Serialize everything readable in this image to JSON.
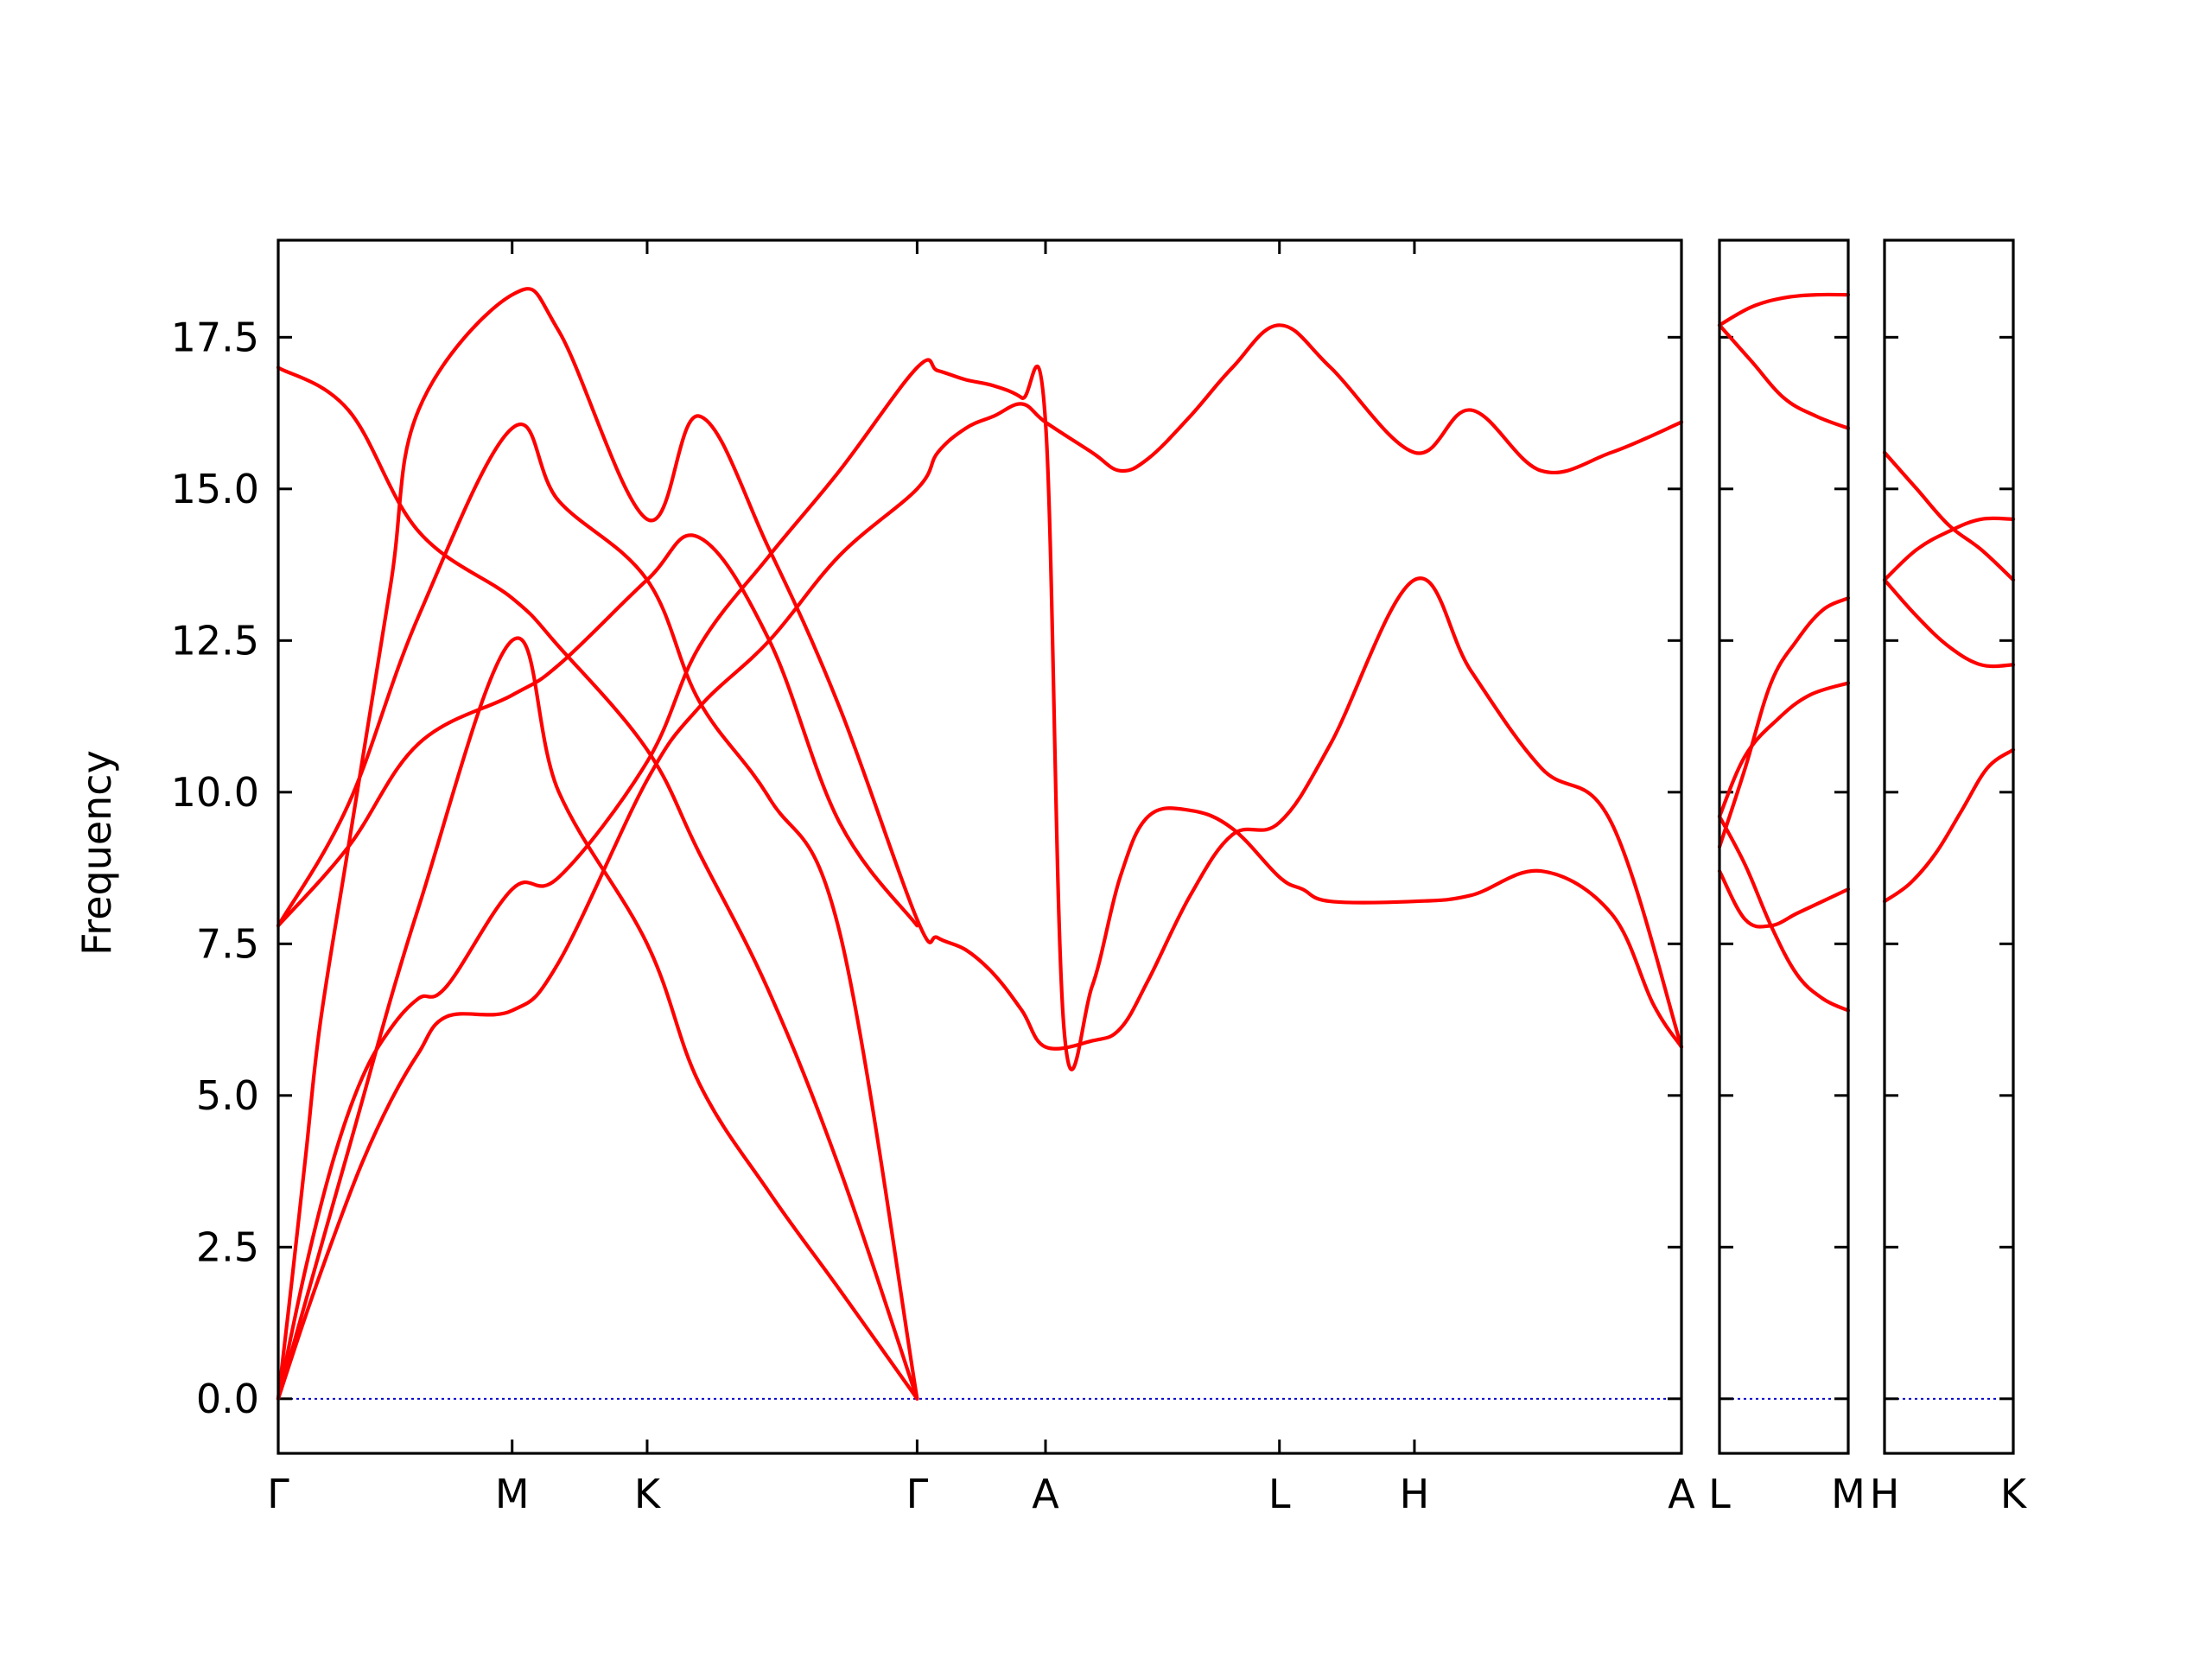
{
  "chart_data": {
    "type": "line",
    "ylabel": "Frequency",
    "ylim": [
      -0.9,
      19.1
    ],
    "yticks": [
      "0.0",
      "2.5",
      "5.0",
      "7.5",
      "10.0",
      "12.5",
      "15.0",
      "17.5"
    ],
    "grid": false,
    "colors": {
      "band": "#ff0000",
      "zero_line": "#0000cc",
      "frame": "#000000"
    },
    "panels": [
      {
        "xlim": [
          0,
          1
        ],
        "xticks": [
          {
            "x": 0.0,
            "label": "Γ"
          },
          {
            "x": 0.1667,
            "label": "M"
          },
          {
            "x": 0.2629,
            "label": "K"
          },
          {
            "x": 0.4553,
            "label": "Γ"
          },
          {
            "x": 0.5468,
            "label": "A"
          },
          {
            "x": 0.7135,
            "label": "L"
          },
          {
            "x": 0.8097,
            "label": "H"
          },
          {
            "x": 1.0,
            "label": "A"
          }
        ],
        "series": [
          {
            "x": [
              0,
              0.02,
              0.04,
              0.06,
              0.08,
              0.1,
              0.12,
              0.1667,
              0.2,
              0.2629,
              0.3,
              0.35,
              0.4,
              0.4553,
              0.47,
              0.49,
              0.51,
              0.53,
              0.5468,
              0.58,
              0.6,
              0.62,
              0.65,
              0.68,
              0.7135,
              0.75,
              0.8097,
              0.85,
              0.9,
              0.95,
              1.0
            ],
            "values": [
              0,
              1.4,
              2.7,
              3.9,
              4.9,
              5.7,
              6.3,
              6.4,
              7.2,
              10.2,
              11.4,
              12.5,
              13.9,
              15.0,
              15.6,
              16.0,
              16.2,
              16.4,
              16.1,
              15.6,
              15.3,
              15.5,
              16.2,
              17.0,
              17.7,
              17.0,
              15.6,
              16.3,
              15.3,
              15.6,
              16.1
            ]
          },
          {
            "x": [
              0,
              0.02,
              0.04,
              0.06,
              0.08,
              0.1,
              0.12,
              0.1667,
              0.2,
              0.2629,
              0.3,
              0.35,
              0.4,
              0.4553,
              0.47,
              0.49,
              0.51,
              0.53,
              0.5468,
              0.56,
              0.58,
              0.6,
              0.62,
              0.65,
              0.68,
              0.7135,
              0.73,
              0.75,
              0.8097,
              0.85,
              0.9,
              0.95,
              0.98,
              1.0
            ],
            "values": [
              0,
              2.2,
              4.0,
              5.3,
              6.1,
              6.6,
              6.8,
              8.4,
              8.6,
              10.5,
              12.4,
              13.9,
              15.3,
              17.0,
              16.95,
              16.8,
              16.7,
              16.5,
              16.1,
              6.1,
              6.8,
              8.6,
              9.6,
              9.7,
              9.4,
              8.6,
              8.4,
              8.2,
              8.2,
              8.3,
              8.7,
              8.0,
              6.5,
              5.8
            ]
          },
          {
            "x": [
              0,
              0.01,
              0.02,
              0.03,
              0.05,
              0.08,
              0.1,
              0.1667,
              0.2,
              0.2629,
              0.3,
              0.35,
              0.4,
              0.4553,
              0.47,
              0.49,
              0.51,
              0.53,
              0.5468,
              0.58,
              0.6,
              0.62,
              0.65,
              0.68,
              0.7135,
              0.75,
              0.8097,
              0.85,
              0.9,
              0.95,
              1.0
            ],
            "values": [
              0,
              2.0,
              4.1,
              6.2,
              9.1,
              13.4,
              16.3,
              18.2,
              17.6,
              14.5,
              16.2,
              14.0,
              11.4,
              7.9,
              7.6,
              7.4,
              7.0,
              6.4,
              5.8,
              5.9,
              6.1,
              6.9,
              8.3,
              9.3,
              9.5,
              10.8,
              13.5,
              12.0,
              10.4,
              9.5,
              5.8
            ]
          },
          {
            "x": [
              0,
              0.05,
              0.1,
              0.1667,
              0.2,
              0.2629,
              0.3,
              0.35,
              0.4,
              0.4553
            ],
            "values": [
              0,
              4.1,
              8.1,
              12.5,
              10.0,
              7.5,
              5.2,
              3.4,
              1.8,
              0
            ]
          },
          {
            "x": [
              0,
              0.05,
              0.1,
              0.1667,
              0.2,
              0.2629,
              0.3,
              0.35,
              0.4,
              0.4553
            ],
            "values": [
              7.8,
              9.8,
              12.9,
              16.0,
              14.8,
              13.5,
              11.5,
              9.9,
              7.7,
              0
            ]
          },
          {
            "x": [
              0,
              0.05,
              0.1,
              0.1667,
              0.2,
              0.2629,
              0.3,
              0.35,
              0.4,
              0.4553
            ],
            "values": [
              7.8,
              9.1,
              10.8,
              11.6,
              12.1,
              13.5,
              14.2,
              12.5,
              9.5,
              7.8
            ]
          },
          {
            "x": [
              0,
              0.05,
              0.1,
              0.1667,
              0.2,
              0.2629,
              0.3,
              0.35,
              0.4,
              0.4553
            ],
            "values": [
              17.0,
              16.3,
              14.3,
              13.2,
              12.4,
              10.7,
              9.0,
              6.7,
              3.8,
              0
            ]
          }
        ]
      },
      {
        "xlim": [
          0,
          1
        ],
        "xticks": [
          {
            "x": 0.0,
            "label": "L"
          },
          {
            "x": 1.0,
            "label": "M"
          }
        ],
        "series": [
          {
            "x": [
              0,
              0.25,
              0.5,
              0.75,
              1.0
            ],
            "values": [
              17.7,
              18.0,
              18.15,
              18.2,
              18.2
            ]
          },
          {
            "x": [
              0,
              0.25,
              0.5,
              0.75,
              1.0
            ],
            "values": [
              17.7,
              17.1,
              16.5,
              16.2,
              16.0
            ]
          },
          {
            "x": [
              0,
              0.2,
              0.45,
              0.7,
              1.0
            ],
            "values": [
              9.6,
              10.6,
              11.2,
              11.6,
              11.8
            ]
          },
          {
            "x": [
              0,
              0.2,
              0.4,
              0.6,
              0.8,
              1.0
            ],
            "values": [
              9.1,
              10.4,
              11.8,
              12.5,
              13.0,
              13.2
            ]
          },
          {
            "x": [
              0,
              0.2,
              0.4,
              0.6,
              0.8,
              1.0
            ],
            "values": [
              8.7,
              7.9,
              7.8,
              8.0,
              8.2,
              8.4
            ]
          },
          {
            "x": [
              0,
              0.2,
              0.4,
              0.6,
              0.8,
              1.0
            ],
            "values": [
              9.6,
              8.8,
              7.8,
              7.0,
              6.6,
              6.4
            ]
          }
        ]
      },
      {
        "xlim": [
          0,
          1
        ],
        "xticks": [
          {
            "x": 0.0,
            "label": "H"
          },
          {
            "x": 1.0,
            "label": "K"
          }
        ],
        "series": [
          {
            "x": [
              0,
              0.25,
              0.5,
              0.75,
              1.0
            ],
            "values": [
              15.6,
              15.0,
              14.4,
              14.0,
              13.5
            ]
          },
          {
            "x": [
              0,
              0.25,
              0.5,
              0.75,
              1.0
            ],
            "values": [
              13.5,
              14.0,
              14.3,
              14.5,
              14.5
            ]
          },
          {
            "x": [
              0,
              0.25,
              0.5,
              0.75,
              1.0
            ],
            "values": [
              13.5,
              12.9,
              12.4,
              12.1,
              12.1
            ]
          },
          {
            "x": [
              0,
              0.2,
              0.4,
              0.6,
              0.8,
              1.0
            ],
            "values": [
              8.2,
              8.5,
              9.0,
              9.7,
              10.4,
              10.7
            ]
          }
        ]
      }
    ]
  }
}
